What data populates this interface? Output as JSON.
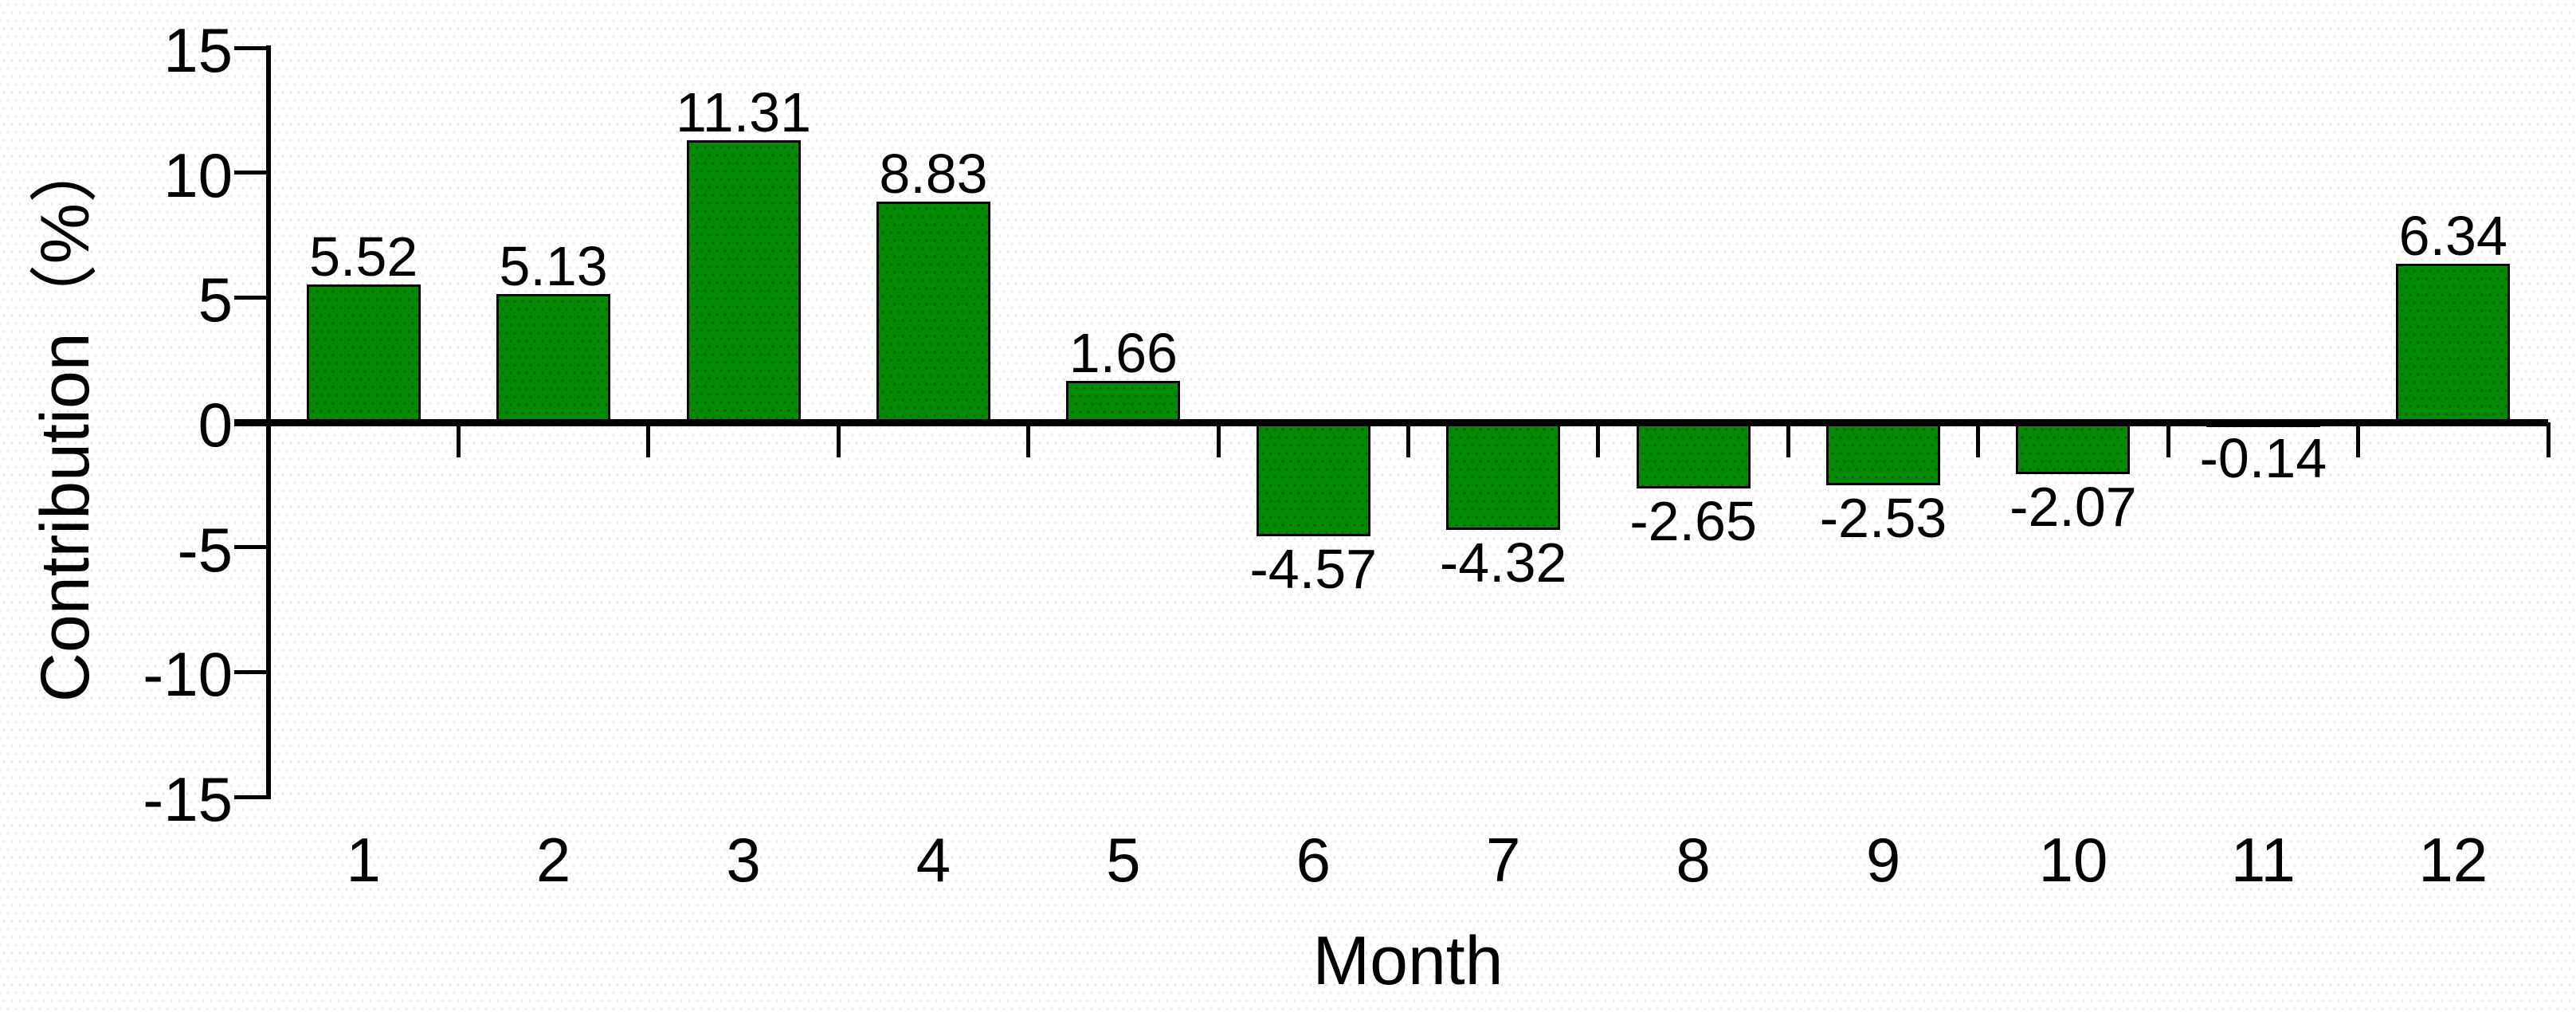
{
  "chart_data": {
    "type": "bar",
    "title": "",
    "categories": [
      "1",
      "2",
      "3",
      "4",
      "5",
      "6",
      "7",
      "8",
      "9",
      "10",
      "11",
      "12"
    ],
    "values": [
      5.52,
      5.13,
      11.31,
      8.83,
      1.66,
      -4.57,
      -4.32,
      -2.65,
      -2.53,
      -2.07,
      -0.14,
      6.34
    ],
    "value_labels": [
      "5.52",
      "5.13",
      "11.31",
      "8.83",
      "1.66",
      "-4.57",
      "-4.32",
      "-2.65",
      "-2.53",
      "-2.07",
      "-0.14",
      "6.34"
    ],
    "xlabel": "Month",
    "ylabel": "Contribution（%）",
    "ylim": [
      -15,
      15
    ],
    "yticks": [
      15,
      10,
      5,
      0,
      -5,
      -10,
      -15
    ],
    "ytick_labels": [
      "15",
      "10",
      "5",
      "0",
      "-5",
      "-10",
      "-15"
    ],
    "grid": false,
    "legend": null,
    "bar_color": "#048a04",
    "bar_border_color": "#000000",
    "axis_color": "#000000",
    "text_color": "#000000"
  }
}
